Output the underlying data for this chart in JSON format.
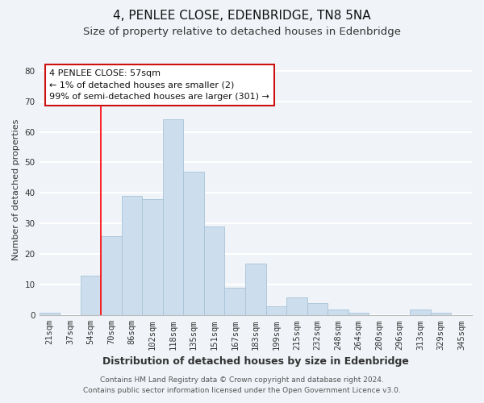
{
  "title": "4, PENLEE CLOSE, EDENBRIDGE, TN8 5NA",
  "subtitle": "Size of property relative to detached houses in Edenbridge",
  "xlabel": "Distribution of detached houses by size in Edenbridge",
  "ylabel": "Number of detached properties",
  "bar_color": "#ccdded",
  "bar_edge_color": "#a8c4d8",
  "background_color": "#f0f4f8",
  "grid_color": "#ffffff",
  "categories": [
    "21sqm",
    "37sqm",
    "54sqm",
    "70sqm",
    "86sqm",
    "102sqm",
    "118sqm",
    "135sqm",
    "151sqm",
    "167sqm",
    "183sqm",
    "199sqm",
    "215sqm",
    "232sqm",
    "248sqm",
    "264sqm",
    "280sqm",
    "296sqm",
    "313sqm",
    "329sqm",
    "345sqm"
  ],
  "values": [
    1,
    0,
    13,
    26,
    39,
    38,
    64,
    47,
    29,
    9,
    17,
    3,
    6,
    4,
    2,
    1,
    0,
    0,
    2,
    1,
    0
  ],
  "ylim": [
    0,
    82
  ],
  "yticks": [
    0,
    10,
    20,
    30,
    40,
    50,
    60,
    70,
    80
  ],
  "red_line_x": 2.5,
  "annotation_title": "4 PENLEE CLOSE: 57sqm",
  "annotation_line1": "← 1% of detached houses are smaller (2)",
  "annotation_line2": "99% of semi-detached houses are larger (301) →",
  "footer_line1": "Contains HM Land Registry data © Crown copyright and database right 2024.",
  "footer_line2": "Contains public sector information licensed under the Open Government Licence v3.0.",
  "title_fontsize": 11,
  "subtitle_fontsize": 9.5,
  "xlabel_fontsize": 9,
  "ylabel_fontsize": 8,
  "tick_fontsize": 7.5,
  "footer_fontsize": 6.5,
  "annotation_fontsize": 8
}
